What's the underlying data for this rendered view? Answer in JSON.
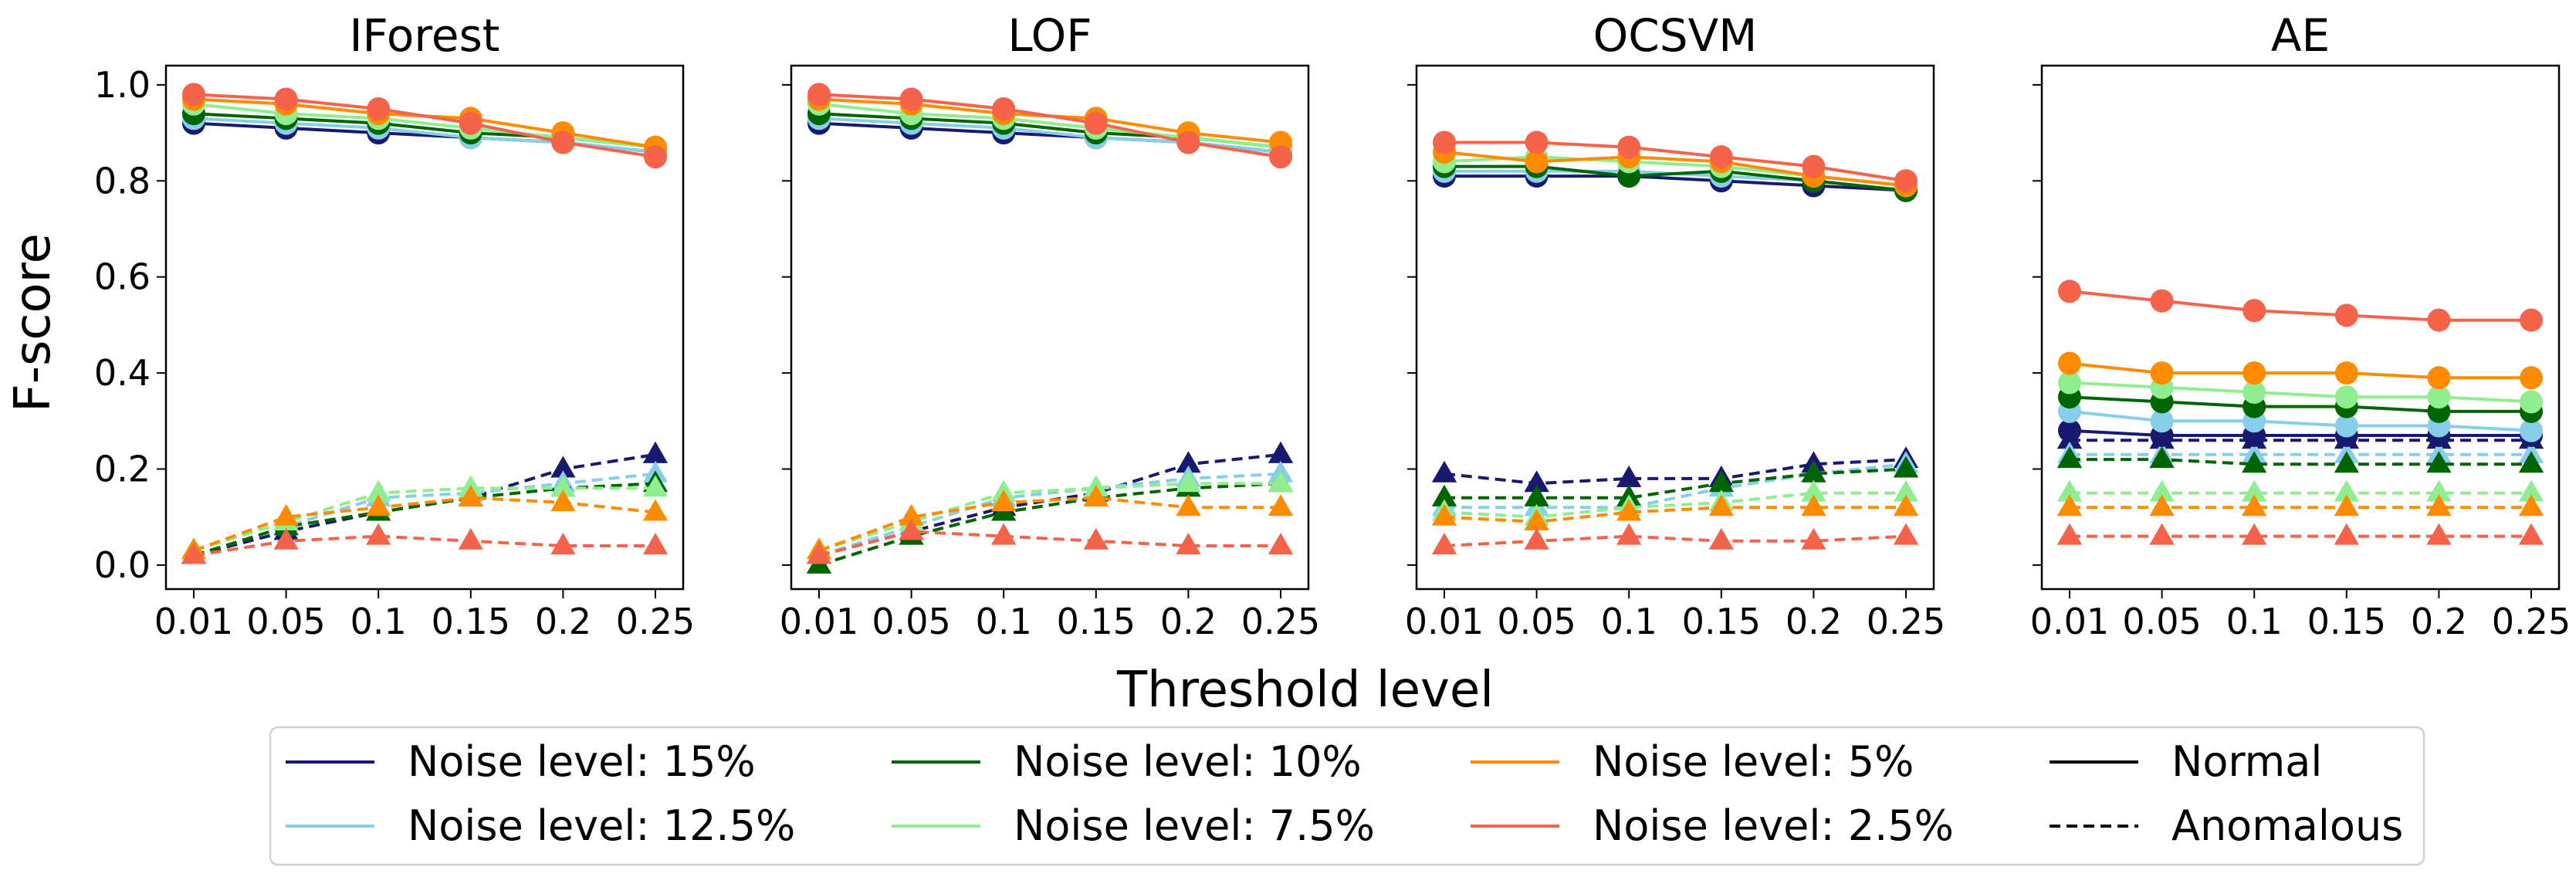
{
  "figure": {
    "ylabel": "F-score",
    "xlabel": "Threshold level",
    "x_tick_labels": [
      "0.01",
      "0.05",
      "0.1",
      "0.15",
      "0.2",
      "0.25"
    ],
    "y_tick_labels": [
      "0.0",
      "0.2",
      "0.4",
      "0.6",
      "0.8",
      "1.0"
    ],
    "legend": {
      "placement": "bottom-center",
      "entries": [
        {
          "label": "Noise level: 15%",
          "color": "#191970",
          "dash": "solid"
        },
        {
          "label": "Noise level: 10%",
          "color": "#006400",
          "dash": "solid"
        },
        {
          "label": "Noise level: 5%",
          "color": "#FF8C00",
          "dash": "solid"
        },
        {
          "label": "Normal",
          "color": "#000000",
          "dash": "solid"
        },
        {
          "label": "Noise level: 12.5%",
          "color": "#87CEEB",
          "dash": "solid"
        },
        {
          "label": "Noise level: 7.5%",
          "color": "#90EE90",
          "dash": "solid"
        },
        {
          "label": "Noise level: 2.5%",
          "color": "#F4634A",
          "dash": "solid"
        },
        {
          "label": "Anomalous",
          "color": "#000000",
          "dash": "dashed"
        }
      ]
    }
  },
  "chart_data": [
    {
      "type": "line",
      "title": "IForest",
      "x": [
        "0.01",
        "0.05",
        "0.1",
        "0.15",
        "0.2",
        "0.25"
      ],
      "ylim": [
        -0.05,
        1.04
      ],
      "grid": false,
      "series": [
        {
          "name": "Noise level: 15% (Normal)",
          "noise": "15%",
          "class": "normal",
          "color": "#191970",
          "values": [
            0.92,
            0.91,
            0.9,
            0.89,
            0.88,
            0.86
          ]
        },
        {
          "name": "Noise level: 12.5% (Normal)",
          "noise": "12.5%",
          "class": "normal",
          "color": "#87CEEB",
          "values": [
            0.93,
            0.92,
            0.91,
            0.89,
            0.88,
            0.86
          ]
        },
        {
          "name": "Noise level: 10% (Normal)",
          "noise": "10%",
          "class": "normal",
          "color": "#006400",
          "values": [
            0.94,
            0.93,
            0.92,
            0.9,
            0.89,
            0.87
          ]
        },
        {
          "name": "Noise level: 7.5% (Normal)",
          "noise": "7.5%",
          "class": "normal",
          "color": "#90EE90",
          "values": [
            0.96,
            0.94,
            0.93,
            0.91,
            0.89,
            0.87
          ]
        },
        {
          "name": "Noise level: 5% (Normal)",
          "noise": "5%",
          "class": "normal",
          "color": "#FF8C00",
          "values": [
            0.97,
            0.96,
            0.94,
            0.93,
            0.9,
            0.87
          ]
        },
        {
          "name": "Noise level: 2.5% (Normal)",
          "noise": "2.5%",
          "class": "normal",
          "color": "#F4634A",
          "values": [
            0.98,
            0.97,
            0.95,
            0.92,
            0.88,
            0.85
          ]
        },
        {
          "name": "Noise level: 15% (Anomalous)",
          "noise": "15%",
          "class": "anomalous",
          "color": "#191970",
          "values": [
            0.02,
            0.07,
            0.11,
            0.14,
            0.2,
            0.23
          ]
        },
        {
          "name": "Noise level: 12.5% (Anomalous)",
          "noise": "12.5%",
          "class": "anomalous",
          "color": "#87CEEB",
          "values": [
            0.02,
            0.08,
            0.14,
            0.15,
            0.17,
            0.19
          ]
        },
        {
          "name": "Noise level: 10% (Anomalous)",
          "noise": "10%",
          "class": "anomalous",
          "color": "#006400",
          "values": [
            0.02,
            0.08,
            0.11,
            0.14,
            0.16,
            0.17
          ]
        },
        {
          "name": "Noise level: 7.5% (Anomalous)",
          "noise": "7.5%",
          "class": "anomalous",
          "color": "#90EE90",
          "values": [
            0.03,
            0.09,
            0.15,
            0.16,
            0.16,
            0.16
          ]
        },
        {
          "name": "Noise level: 5% (Anomalous)",
          "noise": "5%",
          "class": "anomalous",
          "color": "#FF8C00",
          "values": [
            0.03,
            0.1,
            0.12,
            0.14,
            0.13,
            0.11
          ]
        },
        {
          "name": "Noise level: 2.5% (Anomalous)",
          "noise": "2.5%",
          "class": "anomalous",
          "color": "#F4634A",
          "values": [
            0.02,
            0.05,
            0.06,
            0.05,
            0.04,
            0.04
          ]
        }
      ]
    },
    {
      "type": "line",
      "title": "LOF",
      "x": [
        "0.01",
        "0.05",
        "0.1",
        "0.15",
        "0.2",
        "0.25"
      ],
      "ylim": [
        -0.05,
        1.04
      ],
      "grid": false,
      "series": [
        {
          "name": "Noise level: 15% (Normal)",
          "noise": "15%",
          "class": "normal",
          "color": "#191970",
          "values": [
            0.92,
            0.91,
            0.9,
            0.89,
            0.88,
            0.86
          ]
        },
        {
          "name": "Noise level: 12.5% (Normal)",
          "noise": "12.5%",
          "class": "normal",
          "color": "#87CEEB",
          "values": [
            0.93,
            0.92,
            0.91,
            0.89,
            0.88,
            0.86
          ]
        },
        {
          "name": "Noise level: 10% (Normal)",
          "noise": "10%",
          "class": "normal",
          "color": "#006400",
          "values": [
            0.94,
            0.93,
            0.92,
            0.9,
            0.89,
            0.87
          ]
        },
        {
          "name": "Noise level: 7.5% (Normal)",
          "noise": "7.5%",
          "class": "normal",
          "color": "#90EE90",
          "values": [
            0.96,
            0.94,
            0.93,
            0.91,
            0.89,
            0.87
          ]
        },
        {
          "name": "Noise level: 5% (Normal)",
          "noise": "5%",
          "class": "normal",
          "color": "#FF8C00",
          "values": [
            0.97,
            0.96,
            0.94,
            0.93,
            0.9,
            0.88
          ]
        },
        {
          "name": "Noise level: 2.5% (Normal)",
          "noise": "2.5%",
          "class": "normal",
          "color": "#F4634A",
          "values": [
            0.98,
            0.97,
            0.95,
            0.92,
            0.88,
            0.85
          ]
        },
        {
          "name": "Noise level: 15% (Anomalous)",
          "noise": "15%",
          "class": "anomalous",
          "color": "#191970",
          "values": [
            0.02,
            0.07,
            0.12,
            0.15,
            0.21,
            0.23
          ]
        },
        {
          "name": "Noise level: 12.5% (Anomalous)",
          "noise": "12.5%",
          "class": "anomalous",
          "color": "#87CEEB",
          "values": [
            0.02,
            0.08,
            0.14,
            0.16,
            0.18,
            0.19
          ]
        },
        {
          "name": "Noise level: 10% (Anomalous)",
          "noise": "10%",
          "class": "anomalous",
          "color": "#006400",
          "values": [
            0.0,
            0.06,
            0.11,
            0.14,
            0.16,
            0.17
          ]
        },
        {
          "name": "Noise level: 7.5% (Anomalous)",
          "noise": "7.5%",
          "class": "anomalous",
          "color": "#90EE90",
          "values": [
            0.03,
            0.09,
            0.15,
            0.16,
            0.17,
            0.17
          ]
        },
        {
          "name": "Noise level: 5% (Anomalous)",
          "noise": "5%",
          "class": "anomalous",
          "color": "#FF8C00",
          "values": [
            0.03,
            0.1,
            0.13,
            0.14,
            0.12,
            0.12
          ]
        },
        {
          "name": "Noise level: 2.5% (Anomalous)",
          "noise": "2.5%",
          "class": "anomalous",
          "color": "#F4634A",
          "values": [
            0.02,
            0.07,
            0.06,
            0.05,
            0.04,
            0.04
          ]
        }
      ]
    },
    {
      "type": "line",
      "title": "OCSVM",
      "x": [
        "0.01",
        "0.05",
        "0.1",
        "0.15",
        "0.2",
        "0.25"
      ],
      "ylim": [
        -0.05,
        1.04
      ],
      "grid": false,
      "series": [
        {
          "name": "Noise level: 15% (Normal)",
          "noise": "15%",
          "class": "normal",
          "color": "#191970",
          "values": [
            0.81,
            0.81,
            0.81,
            0.8,
            0.79,
            0.78
          ]
        },
        {
          "name": "Noise level: 12.5% (Normal)",
          "noise": "12.5%",
          "class": "normal",
          "color": "#87CEEB",
          "values": [
            0.82,
            0.82,
            0.82,
            0.81,
            0.8,
            0.78
          ]
        },
        {
          "name": "Noise level: 10% (Normal)",
          "noise": "10%",
          "class": "normal",
          "color": "#006400",
          "values": [
            0.83,
            0.83,
            0.81,
            0.82,
            0.8,
            0.78
          ]
        },
        {
          "name": "Noise level: 7.5% (Normal)",
          "noise": "7.5%",
          "class": "normal",
          "color": "#90EE90",
          "values": [
            0.84,
            0.85,
            0.84,
            0.83,
            0.81,
            0.79
          ]
        },
        {
          "name": "Noise level: 5% (Normal)",
          "noise": "5%",
          "class": "normal",
          "color": "#FF8C00",
          "values": [
            0.86,
            0.84,
            0.85,
            0.84,
            0.81,
            0.79
          ]
        },
        {
          "name": "Noise level: 2.5% (Normal)",
          "noise": "2.5%",
          "class": "normal",
          "color": "#F4634A",
          "values": [
            0.88,
            0.88,
            0.87,
            0.85,
            0.83,
            0.8
          ]
        },
        {
          "name": "Noise level: 15% (Anomalous)",
          "noise": "15%",
          "class": "anomalous",
          "color": "#191970",
          "values": [
            0.19,
            0.17,
            0.18,
            0.18,
            0.21,
            0.22
          ]
        },
        {
          "name": "Noise level: 12.5% (Anomalous)",
          "noise": "12.5%",
          "class": "anomalous",
          "color": "#87CEEB",
          "values": [
            0.12,
            0.12,
            0.12,
            0.16,
            0.19,
            0.21
          ]
        },
        {
          "name": "Noise level: 10% (Anomalous)",
          "noise": "10%",
          "class": "anomalous",
          "color": "#006400",
          "values": [
            0.14,
            0.14,
            0.14,
            0.17,
            0.19,
            0.2
          ]
        },
        {
          "name": "Noise level: 7.5% (Anomalous)",
          "noise": "7.5%",
          "class": "anomalous",
          "color": "#90EE90",
          "values": [
            0.11,
            0.1,
            0.12,
            0.13,
            0.15,
            0.15
          ]
        },
        {
          "name": "Noise level: 5% (Anomalous)",
          "noise": "5%",
          "class": "anomalous",
          "color": "#FF8C00",
          "values": [
            0.1,
            0.09,
            0.11,
            0.12,
            0.12,
            0.12
          ]
        },
        {
          "name": "Noise level: 2.5% (Anomalous)",
          "noise": "2.5%",
          "class": "anomalous",
          "color": "#F4634A",
          "values": [
            0.04,
            0.05,
            0.06,
            0.05,
            0.05,
            0.06
          ]
        }
      ]
    },
    {
      "type": "line",
      "title": "AE",
      "x": [
        "0.01",
        "0.05",
        "0.1",
        "0.15",
        "0.2",
        "0.25"
      ],
      "ylim": [
        -0.05,
        1.04
      ],
      "grid": false,
      "series": [
        {
          "name": "Noise level: 15% (Normal)",
          "noise": "15%",
          "class": "normal",
          "color": "#191970",
          "values": [
            0.28,
            0.27,
            0.27,
            0.27,
            0.27,
            0.27
          ]
        },
        {
          "name": "Noise level: 12.5% (Normal)",
          "noise": "12.5%",
          "class": "normal",
          "color": "#87CEEB",
          "values": [
            0.32,
            0.3,
            0.3,
            0.29,
            0.29,
            0.28
          ]
        },
        {
          "name": "Noise level: 10% (Normal)",
          "noise": "10%",
          "class": "normal",
          "color": "#006400",
          "values": [
            0.35,
            0.34,
            0.33,
            0.33,
            0.32,
            0.32
          ]
        },
        {
          "name": "Noise level: 7.5% (Normal)",
          "noise": "7.5%",
          "class": "normal",
          "color": "#90EE90",
          "values": [
            0.38,
            0.37,
            0.36,
            0.35,
            0.35,
            0.34
          ]
        },
        {
          "name": "Noise level: 5% (Normal)",
          "noise": "5%",
          "class": "normal",
          "color": "#FF8C00",
          "values": [
            0.42,
            0.4,
            0.4,
            0.4,
            0.39,
            0.39
          ]
        },
        {
          "name": "Noise level: 2.5% (Normal)",
          "noise": "2.5%",
          "class": "normal",
          "color": "#F4634A",
          "values": [
            0.57,
            0.55,
            0.53,
            0.52,
            0.51,
            0.51
          ]
        },
        {
          "name": "Noise level: 15% (Anomalous)",
          "noise": "15%",
          "class": "anomalous",
          "color": "#191970",
          "values": [
            0.26,
            0.26,
            0.26,
            0.26,
            0.26,
            0.26
          ]
        },
        {
          "name": "Noise level: 12.5% (Anomalous)",
          "noise": "12.5%",
          "class": "anomalous",
          "color": "#87CEEB",
          "values": [
            0.23,
            0.23,
            0.23,
            0.23,
            0.23,
            0.23
          ]
        },
        {
          "name": "Noise level: 10% (Anomalous)",
          "noise": "10%",
          "class": "anomalous",
          "color": "#006400",
          "values": [
            0.22,
            0.22,
            0.21,
            0.21,
            0.21,
            0.21
          ]
        },
        {
          "name": "Noise level: 7.5% (Anomalous)",
          "noise": "7.5%",
          "class": "anomalous",
          "color": "#90EE90",
          "values": [
            0.15,
            0.15,
            0.15,
            0.15,
            0.15,
            0.15
          ]
        },
        {
          "name": "Noise level: 5% (Anomalous)",
          "noise": "5%",
          "class": "anomalous",
          "color": "#FF8C00",
          "values": [
            0.12,
            0.12,
            0.12,
            0.12,
            0.12,
            0.12
          ]
        },
        {
          "name": "Noise level: 2.5% (Anomalous)",
          "noise": "2.5%",
          "class": "anomalous",
          "color": "#F4634A",
          "values": [
            0.06,
            0.06,
            0.06,
            0.06,
            0.06,
            0.06
          ]
        }
      ]
    }
  ]
}
